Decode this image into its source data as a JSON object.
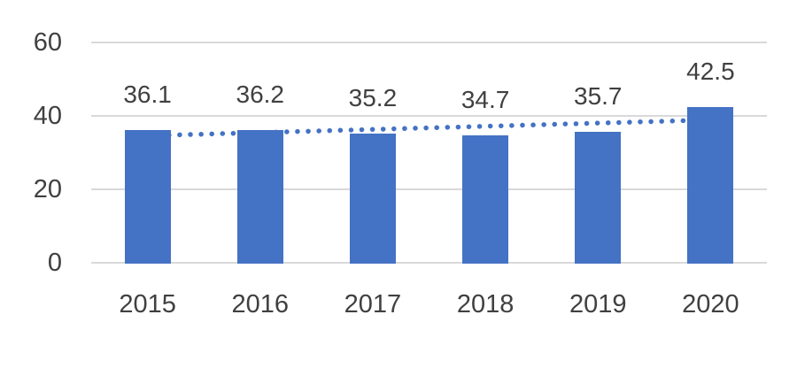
{
  "chart_data": {
    "type": "bar",
    "categories": [
      "2015",
      "2016",
      "2017",
      "2018",
      "2019",
      "2020"
    ],
    "values": [
      36.1,
      36.2,
      35.2,
      34.7,
      35.7,
      42.5
    ],
    "data_labels": [
      "36.1",
      "36.2",
      "35.2",
      "34.7",
      "35.7",
      "42.5"
    ],
    "yticks": [
      0,
      20,
      40,
      60
    ],
    "ylim": [
      0,
      60
    ],
    "grid": true,
    "legend": false,
    "bar_color": "#4472C4",
    "gridline_color": "#D9D9D9",
    "text_color": "#404040",
    "trendline": {
      "type": "linear",
      "style": "dotted",
      "color": "#4472C4",
      "start_value": 34.6,
      "end_value": 38.9
    }
  }
}
